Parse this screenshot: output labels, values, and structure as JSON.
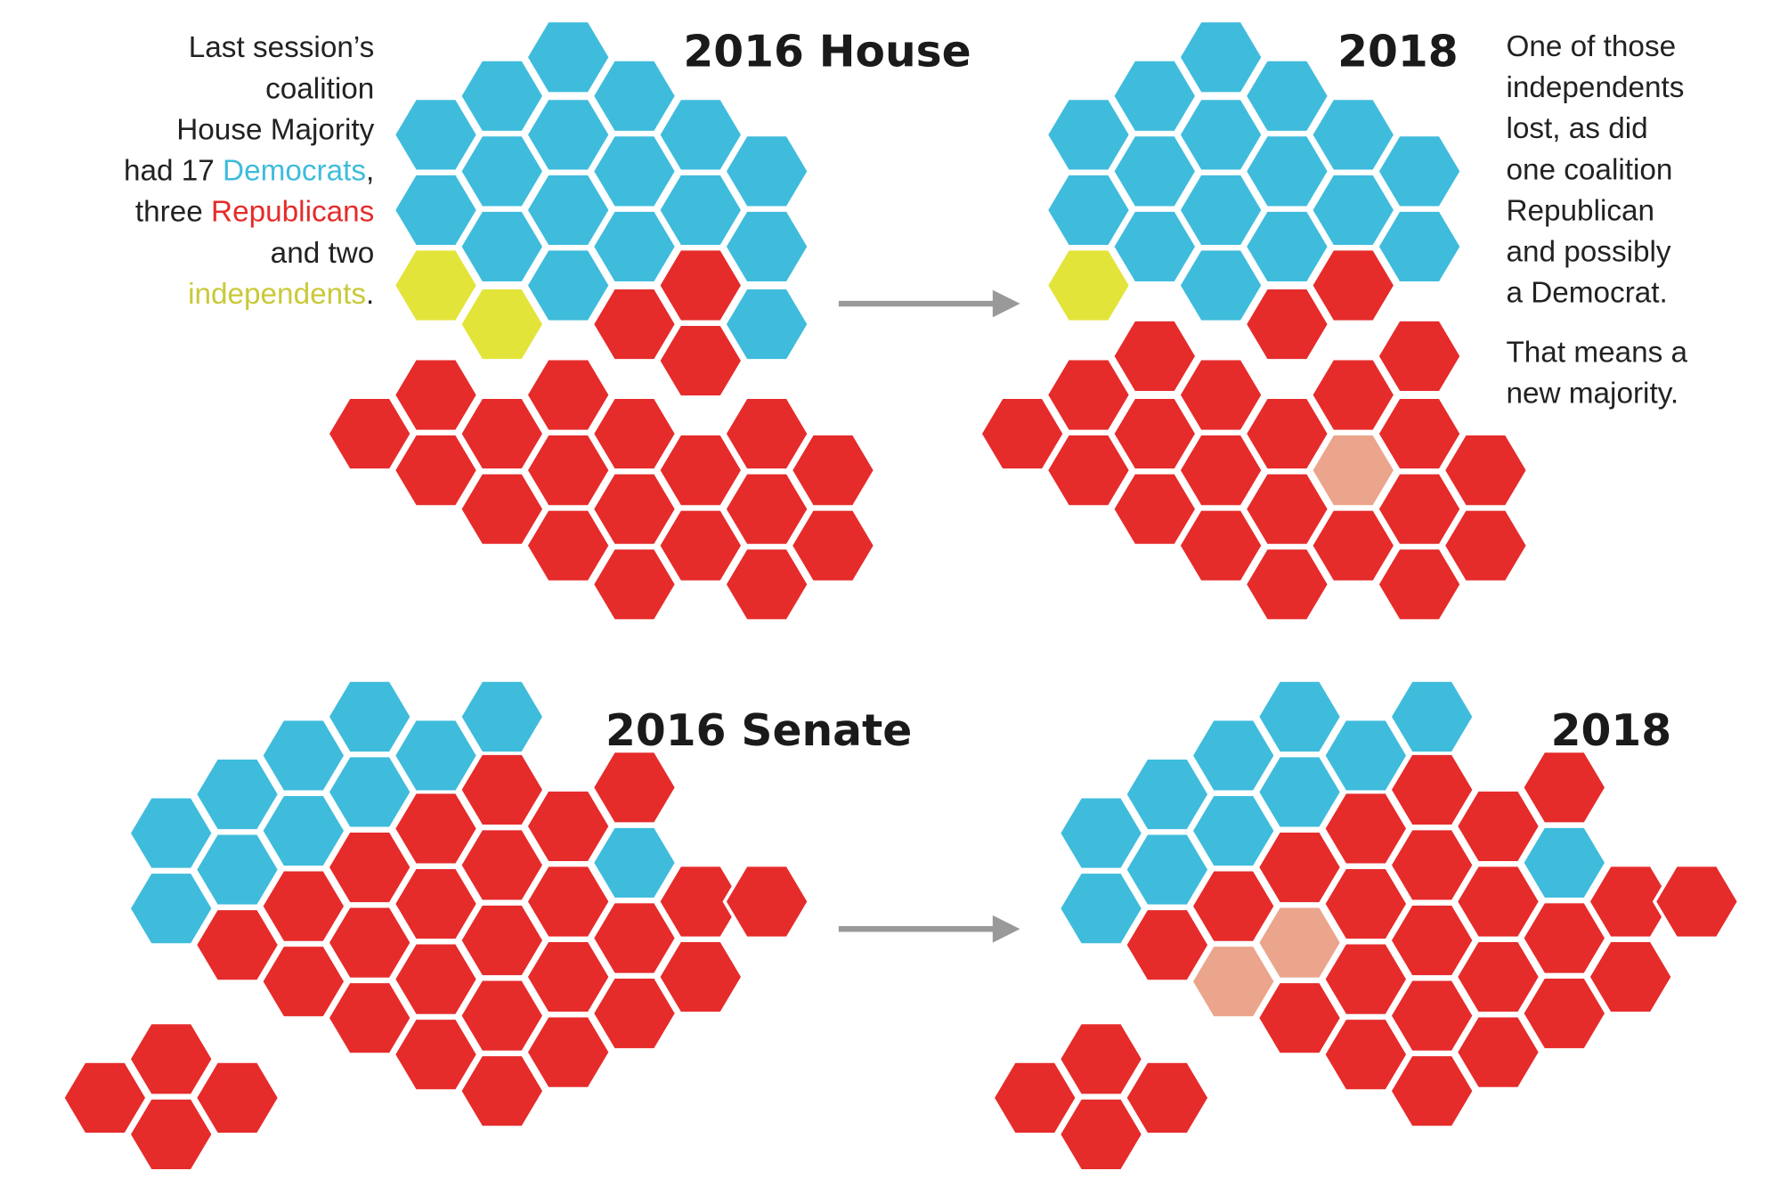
{
  "colors": {
    "democrat": "#3fbcdc",
    "republican": "#e62b2b",
    "independent": "#e3e43a",
    "possible": "#eba58c"
  },
  "house": {
    "title_before": "2016 House",
    "title_after": "2018"
  },
  "senate": {
    "title_before": "2016 Senate",
    "title_after": "2018"
  },
  "left_note": {
    "lines": [
      [
        {
          "text": "Last session’s"
        }
      ],
      [
        {
          "text": "coalition"
        }
      ],
      [
        {
          "text": "House Majority"
        }
      ],
      [
        {
          "text": "had 17 "
        },
        {
          "text": "Democrats",
          "color": "#3fbcdc"
        },
        {
          "text": ","
        }
      ],
      [
        {
          "text": "three "
        },
        {
          "text": "Republicans",
          "color": "#e62b2b"
        }
      ],
      [
        {
          "text": "and two"
        }
      ],
      [
        {
          "text": "independents",
          "color": "#c9c93a"
        },
        {
          "text": "."
        }
      ]
    ]
  },
  "right_note": {
    "paragraph1": [
      "One of those",
      "independents",
      "lost, as did",
      "one coalition",
      "Republican",
      "and possibly",
      "a Democrat."
    ],
    "paragraph2": [
      "That means a",
      "new majority."
    ]
  }
}
